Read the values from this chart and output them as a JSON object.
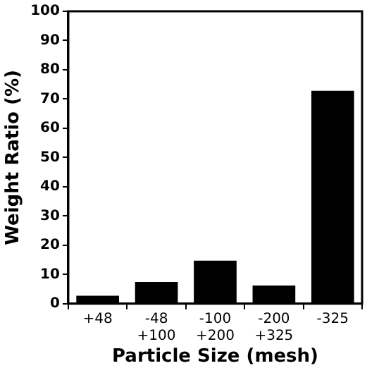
{
  "chart_data": {
    "type": "bar",
    "xlabel": "Particle Size (mesh)",
    "ylabel": "Weight Ratio (%)",
    "categories": [
      "+48",
      "-48\n+100",
      "-100\n+200",
      "-200\n+325",
      "-325"
    ],
    "values": [
      2.7,
      7.4,
      14.7,
      6.2,
      72.8
    ],
    "color": "#000000",
    "ylim": [
      0,
      100
    ],
    "yticks": [
      0,
      10,
      20,
      30,
      40,
      50,
      60,
      70,
      80,
      90,
      100
    ],
    "grid": false,
    "legend": false
  }
}
